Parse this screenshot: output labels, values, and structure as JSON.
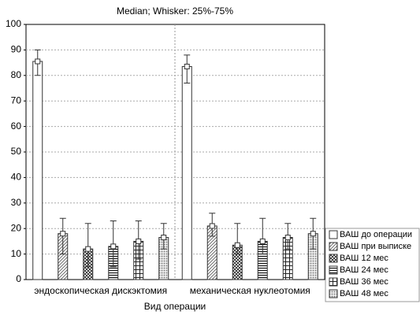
{
  "chart_data": {
    "type": "bar",
    "title": "Median; Whisker: 25%-75%",
    "x_label": "Вид операции",
    "categories": [
      "эндоскопическая дискэктомия",
      "механическая нуклеотомия"
    ],
    "series": [
      {
        "name": "ВАШ до операции",
        "pattern": "none",
        "values": [
          85.5,
          83.5
        ],
        "low": [
          80,
          77
        ],
        "high": [
          90,
          88
        ]
      },
      {
        "name": "ВАШ при выписке",
        "pattern": "diagonal",
        "values": [
          18,
          21
        ],
        "low": [
          10,
          17
        ],
        "high": [
          24,
          26
        ]
      },
      {
        "name": "ВАШ 12 мес",
        "pattern": "crosshatch",
        "values": [
          12,
          13.5
        ],
        "low": [
          5,
          10
        ],
        "high": [
          22,
          22
        ]
      },
      {
        "name": "ВАШ 24 мес",
        "pattern": "horizontal",
        "values": [
          13,
          15
        ],
        "low": [
          5,
          10
        ],
        "high": [
          23,
          24
        ]
      },
      {
        "name": "ВАШ 36 мес",
        "pattern": "grid",
        "values": [
          15,
          16.5
        ],
        "low": [
          8,
          12
        ],
        "high": [
          23,
          22
        ]
      },
      {
        "name": "ВАШ 48 мес",
        "pattern": "dots",
        "values": [
          16.5,
          18
        ],
        "low": [
          12,
          12
        ],
        "high": [
          22,
          24
        ]
      }
    ],
    "ylim": [
      0,
      100
    ],
    "yticks": [
      0,
      10,
      20,
      30,
      40,
      50,
      60,
      70,
      80,
      90,
      100
    ],
    "grid": true
  }
}
